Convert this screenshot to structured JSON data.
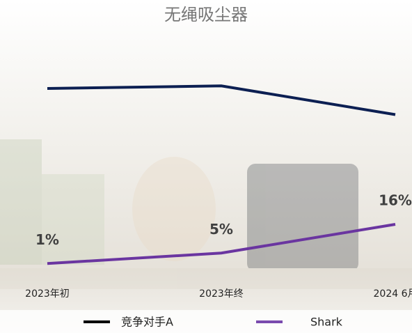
{
  "chart_data": {
    "type": "line",
    "title": "无绳吸尘器",
    "categories": [
      "2023年初",
      "2023年终",
      "2024 6月"
    ],
    "series": [
      {
        "name": "竞争对手A",
        "color": "#0c1f52",
        "legend_color": "#000000",
        "values": [
          68,
          69,
          58
        ]
      },
      {
        "name": "Shark",
        "color": "#6a35a0",
        "legend_color": "#7a4aae",
        "values": [
          1,
          5,
          16
        ],
        "value_labels": [
          "1%",
          "5%",
          "16%"
        ]
      }
    ]
  }
}
